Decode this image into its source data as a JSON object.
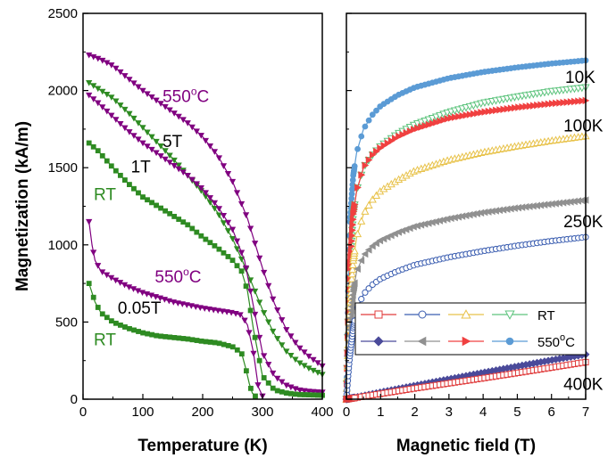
{
  "chart_data": [
    {
      "type": "line",
      "xlabel": "Temperature (K)",
      "ylabel": "Magnetization (kA/m)",
      "xlim": [
        0,
        400
      ],
      "ylim": [
        0,
        2500
      ],
      "xticks": [
        "0",
        "100",
        "200",
        "300",
        "400"
      ],
      "yticks": [
        "0",
        "500",
        "1000",
        "1500",
        "2000",
        "2500"
      ],
      "grid": false,
      "annotations": [
        {
          "text": "550",
          "sup": "o",
          "unit": "C",
          "x": 133,
          "y": 1925,
          "color": "#800080"
        },
        {
          "text": "5T",
          "x": 133,
          "y": 1635,
          "color": "#000000"
        },
        {
          "text": "1T",
          "x": 80,
          "y": 1470,
          "color": "#000000"
        },
        {
          "text": "RT",
          "x": 18,
          "y": 1290,
          "color": "#2e8b22"
        },
        {
          "text": "550",
          "sup": "o",
          "unit": "C",
          "x": 120,
          "y": 755,
          "color": "#800080"
        },
        {
          "text": "0.05T",
          "x": 58,
          "y": 555,
          "color": "#000000"
        },
        {
          "text": "RT",
          "x": 18,
          "y": 350,
          "color": "#2e8b22"
        }
      ],
      "series": [
        {
          "field": "5T",
          "sample": "550 C",
          "color": "#800080",
          "marker": "triangle-down",
          "x": [
            10,
            30,
            50,
            75,
            100,
            125,
            150,
            175,
            200,
            225,
            250,
            275,
            300,
            320,
            340,
            360,
            380,
            400
          ],
          "y": [
            2230,
            2200,
            2160,
            2080,
            2000,
            1930,
            1860,
            1790,
            1700,
            1580,
            1410,
            1170,
            850,
            620,
            450,
            340,
            270,
            215
          ]
        },
        {
          "field": "5T",
          "sample": "RT",
          "color": "#2e8b22",
          "marker": "triangle-down",
          "x": [
            10,
            30,
            50,
            75,
            100,
            125,
            150,
            175,
            200,
            225,
            250,
            275,
            300,
            320,
            340,
            360,
            380,
            400
          ],
          "y": [
            2050,
            2000,
            1950,
            1860,
            1760,
            1660,
            1560,
            1450,
            1340,
            1210,
            1040,
            820,
            580,
            420,
            310,
            240,
            195,
            160
          ]
        },
        {
          "field": "1T",
          "sample": "550 C",
          "color": "#800080",
          "marker": "triangle-down",
          "x": [
            10,
            25,
            50,
            75,
            100,
            125,
            150,
            175,
            200,
            225,
            250,
            270,
            285,
            300,
            320,
            340,
            360,
            380,
            400
          ],
          "y": [
            1970,
            1920,
            1830,
            1740,
            1660,
            1590,
            1520,
            1450,
            1360,
            1250,
            1100,
            900,
            600,
            300,
            150,
            90,
            60,
            50,
            45
          ]
        },
        {
          "field": "1T",
          "sample": "RT",
          "color": "#2e8b22",
          "marker": "square",
          "x": [
            10,
            25,
            50,
            75,
            100,
            125,
            150,
            175,
            200,
            225,
            250,
            265,
            275,
            285,
            300,
            320,
            340,
            360,
            380,
            400
          ],
          "y": [
            1660,
            1610,
            1500,
            1400,
            1310,
            1250,
            1190,
            1130,
            1050,
            980,
            900,
            830,
            700,
            450,
            150,
            60,
            40,
            30,
            28,
            25
          ]
        },
        {
          "field": "0.05T",
          "sample": "550 C",
          "color": "#800080",
          "marker": "triangle-down",
          "x": [
            10,
            15,
            20,
            30,
            50,
            75,
            100,
            125,
            150,
            175,
            200,
            225,
            250,
            265,
            275,
            285,
            293,
            300
          ],
          "y": [
            1150,
            1000,
            900,
            830,
            780,
            730,
            690,
            660,
            630,
            610,
            590,
            575,
            560,
            545,
            480,
            300,
            80,
            20
          ]
        },
        {
          "field": "0.05T",
          "sample": "RT",
          "color": "#2e8b22",
          "marker": "square",
          "x": [
            10,
            20,
            30,
            50,
            75,
            100,
            125,
            150,
            175,
            200,
            225,
            250,
            265,
            272,
            278,
            283,
            288
          ],
          "y": [
            750,
            630,
            560,
            500,
            460,
            430,
            410,
            400,
            390,
            375,
            365,
            340,
            300,
            200,
            100,
            40,
            20
          ]
        }
      ]
    },
    {
      "type": "line",
      "xlabel": "Magnetic field (T)",
      "ylabel": "",
      "xlim": [
        0,
        7
      ],
      "ylim": [
        0,
        2500
      ],
      "xticks": [
        "0",
        "1",
        "2",
        "3",
        "4",
        "5",
        "6",
        "7"
      ],
      "grid": false,
      "annotations": [
        {
          "text": "10K",
          "x": 6.4,
          "y": 2050
        },
        {
          "text": "100K",
          "x": 6.35,
          "y": 1735
        },
        {
          "text": "250K",
          "x": 6.35,
          "y": 1115
        },
        {
          "text": "400K",
          "x": 6.35,
          "y": 62
        }
      ],
      "legend": {
        "position": "lower-right",
        "rows": [
          {
            "label": "RT",
            "markers": [
              {
                "shape": "square",
                "color": "#e03c3c",
                "filled": false
              },
              {
                "shape": "circle",
                "color": "#3a5db0",
                "filled": false
              },
              {
                "shape": "triangle-up",
                "color": "#e8c24a",
                "filled": false
              },
              {
                "shape": "triangle-down",
                "color": "#5ec47e",
                "filled": false
              }
            ]
          },
          {
            "label": "550",
            "label_sup": "o",
            "label_unit": "C",
            "markers": [
              {
                "shape": "diamond",
                "color": "#4a4a9a",
                "filled": true
              },
              {
                "shape": "triangle-left",
                "color": "#909090",
                "filled": true
              },
              {
                "shape": "triangle-right",
                "color": "#f04040",
                "filled": true
              },
              {
                "shape": "circle",
                "color": "#5b9bd5",
                "filled": true
              }
            ]
          }
        ]
      },
      "series": [
        {
          "temperature": "10K",
          "sample": "550 C",
          "color": "#5b9bd5",
          "marker": "circle",
          "filled": true,
          "x": [
            0,
            0.05,
            0.1,
            0.2,
            0.3,
            0.5,
            0.75,
            1,
            1.5,
            2,
            3,
            4,
            5,
            6,
            7
          ],
          "y": [
            0,
            700,
            1150,
            1450,
            1600,
            1750,
            1840,
            1900,
            1970,
            2020,
            2080,
            2120,
            2150,
            2175,
            2195
          ]
        },
        {
          "temperature": "10K",
          "sample": "RT",
          "color": "#5ec47e",
          "marker": "triangle-down",
          "filled": false,
          "x": [
            0,
            0.05,
            0.1,
            0.2,
            0.3,
            0.5,
            0.75,
            1,
            1.5,
            2,
            3,
            4,
            5,
            6,
            7
          ],
          "y": [
            0,
            500,
            850,
            1200,
            1350,
            1500,
            1580,
            1640,
            1720,
            1780,
            1860,
            1920,
            1960,
            1995,
            2020
          ]
        },
        {
          "temperature": "100K",
          "sample": "550 C",
          "color": "#f04040",
          "marker": "triangle-right",
          "filled": true,
          "x": [
            0,
            0.05,
            0.1,
            0.2,
            0.3,
            0.5,
            0.75,
            1,
            1.5,
            2,
            3,
            4,
            5,
            6,
            7
          ],
          "y": [
            0,
            500,
            850,
            1200,
            1350,
            1500,
            1580,
            1630,
            1700,
            1750,
            1820,
            1860,
            1890,
            1915,
            1935
          ]
        },
        {
          "temperature": "100K",
          "sample": "RT",
          "color": "#e8c24a",
          "marker": "triangle-up",
          "filled": false,
          "x": [
            0,
            0.05,
            0.1,
            0.2,
            0.3,
            0.5,
            0.75,
            1,
            1.5,
            2,
            3,
            4,
            5,
            6,
            7
          ],
          "y": [
            0,
            350,
            600,
            900,
            1050,
            1200,
            1290,
            1350,
            1420,
            1480,
            1550,
            1600,
            1640,
            1675,
            1705
          ]
        },
        {
          "temperature": "250K",
          "sample": "550 C",
          "color": "#909090",
          "marker": "triangle-left",
          "filled": true,
          "x": [
            0,
            0.05,
            0.1,
            0.2,
            0.3,
            0.5,
            0.75,
            1,
            1.5,
            2,
            3,
            4,
            5,
            6,
            7
          ],
          "y": [
            0,
            250,
            450,
            700,
            830,
            930,
            990,
            1030,
            1080,
            1120,
            1170,
            1210,
            1240,
            1265,
            1290
          ]
        },
        {
          "temperature": "250K",
          "sample": "RT",
          "color": "#3a5db0",
          "marker": "circle",
          "filled": false,
          "x": [
            0,
            0.05,
            0.1,
            0.2,
            0.3,
            0.5,
            0.75,
            1,
            1.5,
            2,
            3,
            4,
            5,
            6,
            7
          ],
          "y": [
            0,
            150,
            280,
            460,
            580,
            680,
            740,
            780,
            830,
            870,
            920,
            960,
            995,
            1025,
            1050
          ]
        },
        {
          "temperature": "400K",
          "sample": "550 C",
          "color": "#4a4a9a",
          "marker": "diamond",
          "filled": true,
          "x": [
            0,
            1,
            2,
            3,
            4,
            5,
            6,
            7
          ],
          "y": [
            0,
            45,
            88,
            130,
            172,
            213,
            253,
            290
          ]
        },
        {
          "temperature": "400K",
          "sample": "RT",
          "color": "#e03c3c",
          "marker": "square",
          "filled": false,
          "x": [
            0,
            1,
            2,
            3,
            4,
            5,
            6,
            7
          ],
          "y": [
            0,
            35,
            70,
            103,
            136,
            170,
            205,
            240
          ]
        }
      ]
    }
  ]
}
